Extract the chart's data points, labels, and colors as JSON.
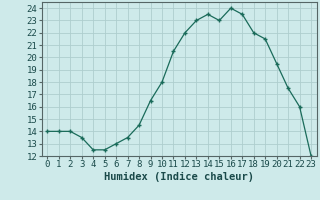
{
  "x": [
    0,
    1,
    2,
    3,
    4,
    5,
    6,
    7,
    8,
    9,
    10,
    11,
    12,
    13,
    14,
    15,
    16,
    17,
    18,
    19,
    20,
    21,
    22,
    23
  ],
  "y": [
    14,
    14,
    14,
    13.5,
    12.5,
    12.5,
    13,
    13.5,
    14.5,
    16.5,
    18,
    20.5,
    22,
    23,
    23.5,
    23,
    24,
    23.5,
    22,
    21.5,
    19.5,
    17.5,
    16,
    12
  ],
  "xlabel": "Humidex (Indice chaleur)",
  "line_color": "#1a6b5a",
  "marker": "+",
  "bg_color": "#ceeaea",
  "grid_color": "#aecece",
  "ylim": [
    12,
    24.5
  ],
  "xlim": [
    -0.5,
    23.5
  ],
  "yticks": [
    12,
    13,
    14,
    15,
    16,
    17,
    18,
    19,
    20,
    21,
    22,
    23,
    24
  ],
  "xticks": [
    0,
    1,
    2,
    3,
    4,
    5,
    6,
    7,
    8,
    9,
    10,
    11,
    12,
    13,
    14,
    15,
    16,
    17,
    18,
    19,
    20,
    21,
    22,
    23
  ],
  "tick_fontsize": 6.5,
  "label_fontsize": 7.5
}
